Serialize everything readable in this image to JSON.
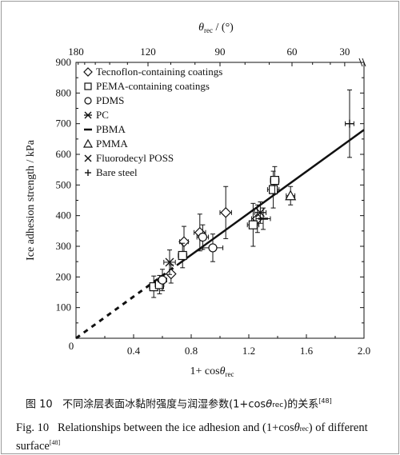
{
  "chart_data": {
    "type": "scatter",
    "xlabel_pre": "1+ cos",
    "xlabel_theta": "θ",
    "xlabel_sub": "rec",
    "ylabel": "Ice adhesion strength / kPa",
    "top_label_theta": "θ",
    "top_label_sub": "rec",
    "top_label_unit": " / (°)",
    "xlim": [
      0,
      2.0
    ],
    "ylim": [
      0,
      900
    ],
    "x_ticks": [
      "0.4",
      "0.8",
      "1.2",
      "1.6",
      "2.0"
    ],
    "y_ticks": [
      "0",
      "100",
      "200",
      "300",
      "400",
      "500",
      "600",
      "700",
      "800",
      "900"
    ],
    "top_ticks": [
      "180",
      "120",
      "90",
      "60",
      "30"
    ],
    "origin_label": "0",
    "legend": [
      {
        "marker": "diamond",
        "label": "Tecnoflon-containing coatings"
      },
      {
        "marker": "square",
        "label": "PEMA-containing coatings"
      },
      {
        "marker": "circle",
        "label": "PDMS"
      },
      {
        "marker": "star",
        "label": "PC"
      },
      {
        "marker": "dash",
        "label": "PBMA"
      },
      {
        "marker": "triangle",
        "label": "PMMA"
      },
      {
        "marker": "cross",
        "label": "Fluorodecyl POSS"
      },
      {
        "marker": "plus",
        "label": "Bare steel"
      }
    ],
    "series": [
      {
        "name": "Tecnoflon-containing coatings",
        "marker": "diamond",
        "points": [
          [
            0.66,
            210,
            30,
            0.02
          ],
          [
            0.75,
            315,
            50,
            0.03
          ],
          [
            0.86,
            345,
            60,
            0.04
          ],
          [
            1.04,
            410,
            85,
            0.04
          ],
          [
            1.26,
            390,
            45,
            0.04
          ]
        ]
      },
      {
        "name": "PEMA-containing coatings",
        "marker": "square",
        "points": [
          [
            0.54,
            168,
            35,
            0.03
          ],
          [
            0.58,
            175,
            30,
            0.03
          ],
          [
            0.74,
            270,
            40,
            0.03
          ],
          [
            1.23,
            370,
            70,
            0.04
          ],
          [
            1.37,
            485,
            60,
            0.04
          ],
          [
            1.38,
            515,
            45,
            0.03
          ]
        ]
      },
      {
        "name": "PDMS",
        "marker": "circle",
        "points": [
          [
            0.6,
            190,
            35,
            0.03
          ],
          [
            0.88,
            330,
            40,
            0.04
          ],
          [
            0.95,
            295,
            45,
            0.07
          ]
        ]
      },
      {
        "name": "PC",
        "marker": "star",
        "points": [
          [
            1.28,
            410,
            35,
            0.04
          ]
        ]
      },
      {
        "name": "PBMA",
        "marker": "dash",
        "points": [
          [
            1.3,
            390,
            35,
            0.05
          ]
        ]
      },
      {
        "name": "PMMA",
        "marker": "triangle",
        "points": [
          [
            1.49,
            465,
            30,
            0.03
          ]
        ]
      },
      {
        "name": "Fluorodecyl POSS",
        "marker": "cross",
        "points": [
          [
            0.65,
            248,
            40,
            0.04
          ]
        ]
      },
      {
        "name": "Bare steel",
        "marker": "plus",
        "points": [
          [
            1.9,
            700,
            110,
            0.03
          ]
        ]
      }
    ],
    "fit_line": {
      "slope": 340,
      "intercept": 0,
      "x_solid_start": 0.7,
      "x_end": 2.0
    }
  },
  "caption_cn": {
    "label": "图 10",
    "text_pre": "不同涂层表面冰黏附强度与润湿参数(1+cos",
    "theta": "θ",
    "sub": "rec",
    "text_post": ")的关系",
    "ref": "[48]"
  },
  "caption_en": {
    "label": "Fig. 10",
    "text_pre": "Relationships between the ice adhesion and (1+cos",
    "theta": "θ",
    "sub": "rec",
    "text_post": ") of different surface",
    "ref": "[48]"
  }
}
